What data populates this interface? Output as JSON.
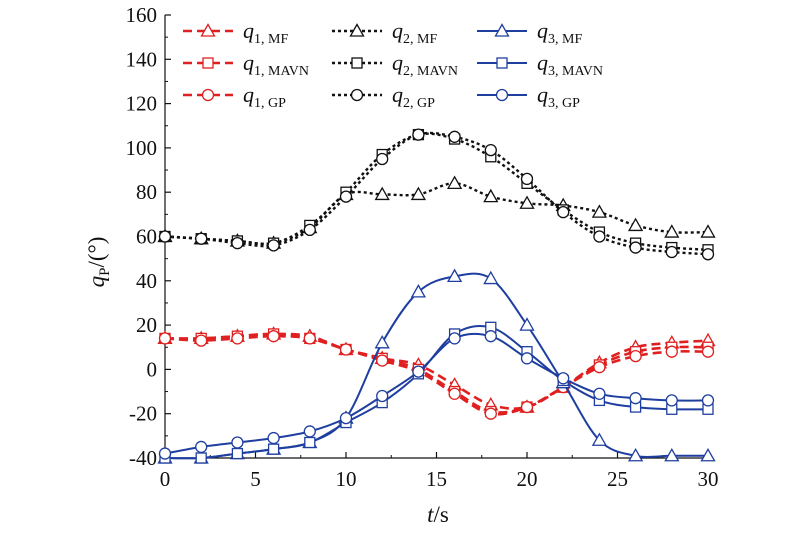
{
  "chart_data": {
    "type": "line",
    "xlabel": "t/s",
    "ylabel": "qP/(°)",
    "xlim": [
      0,
      30
    ],
    "ylim": [
      -40,
      160
    ],
    "xticks": [
      "0",
      "5",
      "10",
      "15",
      "20",
      "25",
      "30"
    ],
    "yticks": [
      "-40",
      "-20",
      "0",
      "20",
      "40",
      "60",
      "80",
      "100",
      "120",
      "140",
      "160"
    ],
    "grid": false,
    "legend_position": "top",
    "colors": {
      "q1": "#e02020",
      "q2": "#111111",
      "q3": "#1f3fa0"
    },
    "x": [
      0,
      2,
      4,
      6,
      8,
      10,
      12,
      14,
      16,
      18,
      20,
      22,
      24,
      26,
      28,
      30
    ],
    "series": [
      {
        "name": "q1, MF",
        "group": "q1",
        "marker": "triangle",
        "values": [
          14,
          14,
          15,
          16,
          15,
          9,
          5,
          2,
          -7,
          -16,
          -17,
          -8,
          3,
          10,
          12,
          13
        ]
      },
      {
        "name": "q1, MAVN",
        "group": "q1",
        "marker": "square",
        "values": [
          14,
          14,
          15,
          16,
          14,
          9,
          5,
          0,
          -10,
          -19,
          -17,
          -8,
          2,
          8,
          10,
          10
        ]
      },
      {
        "name": "q1, GP",
        "group": "q1",
        "marker": "circle",
        "values": [
          14,
          13,
          14,
          15,
          14,
          9,
          4,
          -1,
          -11,
          -20,
          -17,
          -8,
          1,
          6,
          8,
          8
        ]
      },
      {
        "name": "q2, MF",
        "group": "q2",
        "marker": "triangle",
        "values": [
          60,
          59,
          58,
          57,
          64,
          79,
          79,
          79,
          84,
          78,
          75,
          74,
          71,
          65,
          62,
          62
        ]
      },
      {
        "name": "q2, MAVN",
        "group": "q2",
        "marker": "square",
        "values": [
          60,
          59,
          58,
          57,
          65,
          80,
          97,
          106,
          104,
          96,
          84,
          72,
          62,
          57,
          55,
          54
        ]
      },
      {
        "name": "q2, GP",
        "group": "q2",
        "marker": "circle",
        "values": [
          60,
          59,
          57,
          56,
          63,
          78,
          95,
          106,
          105,
          99,
          86,
          71,
          60,
          55,
          53,
          52
        ]
      },
      {
        "name": "q3, MF",
        "group": "q3",
        "marker": "triangle",
        "values": [
          -40,
          -40,
          -38,
          -36,
          -33,
          -22,
          12,
          35,
          42,
          41,
          20,
          -6,
          -32,
          -39,
          -39,
          -39
        ]
      },
      {
        "name": "q3, MAVN",
        "group": "q3",
        "marker": "square",
        "values": [
          -40,
          -40,
          -38,
          -36,
          -33,
          -24,
          -15,
          -2,
          16,
          19,
          8,
          -5,
          -14,
          -17,
          -18,
          -18
        ]
      },
      {
        "name": "q3, GP",
        "group": "q3",
        "marker": "circle",
        "values": [
          -38,
          -35,
          -33,
          -31,
          -28,
          -22,
          -12,
          -1,
          14,
          15,
          5,
          -4,
          -11,
          -13,
          -14,
          -14
        ]
      }
    ],
    "legend": [
      {
        "q": "q",
        "num": "1",
        "sub": ", MF",
        "group": "q1",
        "marker": "triangle"
      },
      {
        "q": "q",
        "num": "2",
        "sub": ", MF",
        "group": "q2",
        "marker": "triangle"
      },
      {
        "q": "q",
        "num": "3",
        "sub": ", MF",
        "group": "q3",
        "marker": "triangle"
      },
      {
        "q": "q",
        "num": "1",
        "sub": ", MAVN",
        "group": "q1",
        "marker": "square"
      },
      {
        "q": "q",
        "num": "2",
        "sub": ", MAVN",
        "group": "q2",
        "marker": "square"
      },
      {
        "q": "q",
        "num": "3",
        "sub": ", MAVN",
        "group": "q3",
        "marker": "square"
      },
      {
        "q": "q",
        "num": "1",
        "sub": ", GP",
        "group": "q1",
        "marker": "circle"
      },
      {
        "q": "q",
        "num": "2",
        "sub": ", GP",
        "group": "q2",
        "marker": "circle"
      },
      {
        "q": "q",
        "num": "3",
        "sub": ", GP",
        "group": "q3",
        "marker": "circle"
      }
    ],
    "axis_titles": {
      "x_main": "t",
      "x_rest": "/s",
      "y_main": "q",
      "y_sub": "P",
      "y_rest": "/(°)"
    }
  }
}
